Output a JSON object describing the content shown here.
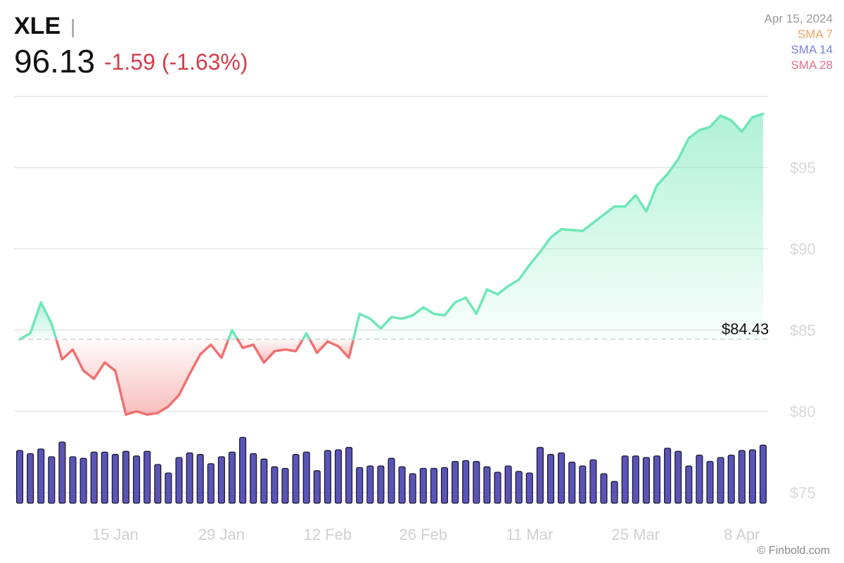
{
  "header": {
    "ticker": "XLE",
    "separator": "|",
    "price": "96.13",
    "change": "-1.59 (-1.63%)"
  },
  "legend": {
    "date": "Apr 15, 2024",
    "sma7": "SMA 7",
    "sma14": "SMA 14",
    "sma28": "SMA 28"
  },
  "copyright": "© Finbold.com",
  "colors": {
    "up_line": "#6ee7b7",
    "down_line": "#f07070",
    "volume_bar": "#5b54b8",
    "volume_outline": "#1a1a2e",
    "grid": "#e6e6e6",
    "ref_line": "#d0d0d0"
  },
  "chart_data": {
    "type": "line",
    "reference_price": 84.43,
    "reference_label": "$84.43",
    "ylim": [
      74,
      99
    ],
    "yticks": [
      {
        "value": 75,
        "label": "$75"
      },
      {
        "value": 80,
        "label": "$80"
      },
      {
        "value": 85,
        "label": "$85"
      },
      {
        "value": 90,
        "label": "$90"
      },
      {
        "value": 95,
        "label": "$95"
      }
    ],
    "xticks": [
      {
        "index": 9,
        "label": "15 Jan"
      },
      {
        "index": 19,
        "label": "29 Jan"
      },
      {
        "index": 29,
        "label": "12 Feb"
      },
      {
        "index": 38,
        "label": "26 Feb"
      },
      {
        "index": 48,
        "label": "11 Mar"
      },
      {
        "index": 58,
        "label": "25 Mar"
      },
      {
        "index": 68,
        "label": "8 Apr"
      }
    ],
    "prices": [
      84.43,
      84.8,
      86.7,
      85.4,
      83.2,
      83.8,
      82.5,
      82.0,
      83.0,
      82.5,
      79.8,
      80.0,
      79.8,
      79.9,
      80.3,
      81.0,
      82.3,
      83.5,
      84.1,
      83.3,
      85.0,
      83.9,
      84.1,
      83.0,
      83.7,
      83.8,
      83.7,
      84.8,
      83.6,
      84.3,
      84.0,
      83.3,
      86.0,
      85.7,
      85.1,
      85.8,
      85.7,
      85.9,
      86.4,
      86.0,
      85.9,
      86.7,
      87.0,
      86.0,
      87.5,
      87.2,
      87.7,
      88.1,
      89.0,
      89.8,
      90.7,
      91.2,
      91.15,
      91.1,
      91.6,
      92.1,
      92.6,
      92.6,
      93.3,
      92.3,
      93.9,
      94.6,
      95.5,
      96.8,
      97.3,
      97.5,
      98.2,
      97.9,
      97.2,
      98.1,
      98.3
    ],
    "volume": [
      0.68,
      0.64,
      0.7,
      0.6,
      0.79,
      0.6,
      0.58,
      0.66,
      0.66,
      0.63,
      0.67,
      0.61,
      0.67,
      0.5,
      0.39,
      0.59,
      0.65,
      0.63,
      0.51,
      0.6,
      0.66,
      0.85,
      0.64,
      0.57,
      0.47,
      0.45,
      0.63,
      0.66,
      0.42,
      0.68,
      0.69,
      0.72,
      0.46,
      0.48,
      0.48,
      0.58,
      0.47,
      0.38,
      0.45,
      0.45,
      0.46,
      0.54,
      0.55,
      0.54,
      0.47,
      0.4,
      0.48,
      0.41,
      0.39,
      0.72,
      0.63,
      0.65,
      0.53,
      0.48,
      0.56,
      0.38,
      0.28,
      0.61,
      0.61,
      0.59,
      0.61,
      0.71,
      0.67,
      0.48,
      0.62,
      0.54,
      0.59,
      0.62,
      0.68,
      0.69,
      0.75
    ]
  }
}
